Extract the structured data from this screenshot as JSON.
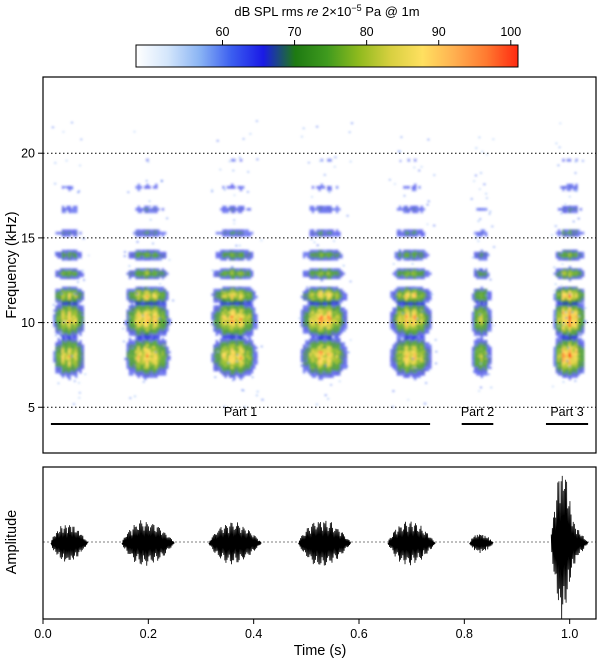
{
  "chart_data": [
    {
      "type": "heatmap",
      "name": "colorbar",
      "title_parts": [
        "dB SPL rms ",
        "re",
        " 2×10",
        "−5",
        " Pa @ 1m"
      ],
      "range": [
        48,
        101
      ],
      "ticks": [
        60,
        70,
        80,
        90,
        100
      ],
      "tick_labels": [
        "60",
        "70",
        "80",
        "90",
        "100"
      ],
      "colors": [
        "#ffffff",
        "#d4e6fb",
        "#8ab4f4",
        "#3b5ef0",
        "#1a1ae6",
        "#1e7a12",
        "#3f9a1e",
        "#8fba1e",
        "#d8d040",
        "#ffe060",
        "#ffb050",
        "#ff7a30",
        "#ff2a10"
      ]
    },
    {
      "type": "heatmap",
      "name": "spectrogram",
      "xlim": [
        0,
        1.05
      ],
      "ylim": [
        2.3,
        24.5
      ],
      "ylabel": "Frequency (kHz)",
      "yticks": [
        5,
        10,
        15,
        20
      ],
      "ytick_labels": [
        "5",
        "10",
        "15",
        "20"
      ],
      "grid_lines_khz": [
        5,
        10,
        15,
        20
      ],
      "calls": [
        {
          "start": 0.015,
          "end": 0.085,
          "intensity": 0.78
        },
        {
          "start": 0.15,
          "end": 0.25,
          "intensity": 0.86
        },
        {
          "start": 0.315,
          "end": 0.415,
          "intensity": 0.87
        },
        {
          "start": 0.485,
          "end": 0.585,
          "intensity": 0.89
        },
        {
          "start": 0.655,
          "end": 0.745,
          "intensity": 0.85
        },
        {
          "start": 0.81,
          "end": 0.855,
          "intensity": 0.62
        },
        {
          "start": 0.965,
          "end": 1.035,
          "intensity": 1.0
        }
      ],
      "bands_khz": [
        {
          "center": 8.0,
          "width": 1.1,
          "weight": 0.95
        },
        {
          "center": 10.2,
          "width": 1.0,
          "weight": 1.0
        },
        {
          "center": 11.6,
          "width": 0.5,
          "weight": 0.85
        },
        {
          "center": 12.9,
          "width": 0.35,
          "weight": 0.6
        },
        {
          "center": 14.0,
          "width": 0.35,
          "weight": 0.5
        },
        {
          "center": 15.3,
          "width": 0.3,
          "weight": 0.35
        },
        {
          "center": 16.7,
          "width": 0.3,
          "weight": 0.28
        },
        {
          "center": 18.0,
          "width": 0.3,
          "weight": 0.22
        },
        {
          "center": 19.6,
          "width": 0.3,
          "weight": 0.16
        },
        {
          "center": 21.0,
          "width": 0.3,
          "weight": 0.12
        }
      ],
      "parts": [
        {
          "label": "Part 1",
          "start": 0.015,
          "end": 0.735
        },
        {
          "label": "Part 2",
          "start": 0.795,
          "end": 0.855
        },
        {
          "label": "Part 3",
          "start": 0.955,
          "end": 1.035
        }
      ]
    },
    {
      "type": "line",
      "name": "waveform",
      "xlim": [
        0,
        1.05
      ],
      "ylim": [
        -1,
        1
      ],
      "xlabel": "Time (s)",
      "ylabel": "Amplitude",
      "xticks": [
        0.0,
        0.2,
        0.4,
        0.6,
        0.8,
        1.0
      ],
      "xtick_labels": [
        "0.0",
        "0.2",
        "0.4",
        "0.6",
        "0.8",
        "1.0"
      ],
      "calls": [
        {
          "start": 0.015,
          "end": 0.085,
          "peak": 0.28
        },
        {
          "start": 0.15,
          "end": 0.25,
          "peak": 0.32
        },
        {
          "start": 0.315,
          "end": 0.415,
          "peak": 0.3
        },
        {
          "start": 0.485,
          "end": 0.585,
          "peak": 0.33
        },
        {
          "start": 0.655,
          "end": 0.745,
          "peak": 0.31
        },
        {
          "start": 0.81,
          "end": 0.855,
          "peak": 0.14
        },
        {
          "start": 0.965,
          "end": 1.035,
          "peak": 1.0
        }
      ]
    }
  ]
}
